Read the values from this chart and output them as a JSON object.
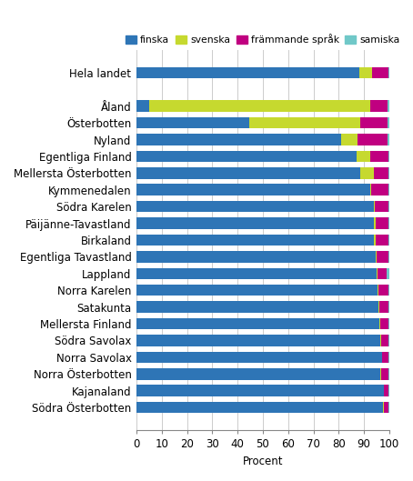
{
  "categories": [
    "Hela landet",
    "",
    "Åland",
    "Österbotten",
    "Nyland",
    "Egentliga Finland",
    "Mellersta Österbotten",
    "Kymmenedalen",
    "Södra Karelen",
    "Päijänne-Tavastland",
    "Birkaland",
    "Egentliga Tavastland",
    "Lappland",
    "Norra Karelen",
    "Satakunta",
    "Mellersta Finland",
    "Södra Savolax",
    "Norra Savolax",
    "Norra Österbotten",
    "Kajanaland",
    "Södra Österbotten"
  ],
  "finska": [
    88.0,
    0.0,
    5.0,
    44.5,
    81.0,
    87.0,
    88.5,
    92.5,
    93.8,
    94.0,
    94.0,
    94.5,
    95.0,
    95.5,
    95.6,
    96.2,
    96.5,
    97.0,
    96.5,
    97.8,
    97.6
  ],
  "svenska": [
    5.2,
    0.0,
    87.5,
    44.0,
    6.5,
    5.5,
    5.5,
    0.5,
    0.4,
    0.5,
    0.5,
    0.4,
    0.4,
    0.3,
    0.4,
    0.3,
    0.3,
    0.2,
    0.3,
    0.2,
    0.2
  ],
  "frammande": [
    6.5,
    0.0,
    7.0,
    11.0,
    12.0,
    7.3,
    5.8,
    6.8,
    5.6,
    5.3,
    5.2,
    4.8,
    3.5,
    4.0,
    3.8,
    3.3,
    3.0,
    2.6,
    3.0,
    1.8,
    2.0
  ],
  "samiska": [
    0.3,
    0.0,
    0.5,
    0.5,
    0.5,
    0.2,
    0.2,
    0.2,
    0.2,
    0.2,
    0.3,
    0.3,
    1.1,
    0.2,
    0.2,
    0.2,
    0.2,
    0.2,
    0.2,
    0.2,
    0.2
  ],
  "colors": {
    "finska": "#2E75B6",
    "svenska": "#C6D92F",
    "frammande": "#C00080",
    "samiska": "#70C8C8"
  },
  "xlabel": "Procent",
  "xlim": [
    0,
    100
  ],
  "xticks": [
    0,
    10,
    20,
    30,
    40,
    50,
    60,
    70,
    80,
    90,
    100
  ],
  "tick_fontsize": 8.5,
  "label_fontsize": 8.5,
  "legend_fontsize": 7.8,
  "bar_height": 0.68
}
